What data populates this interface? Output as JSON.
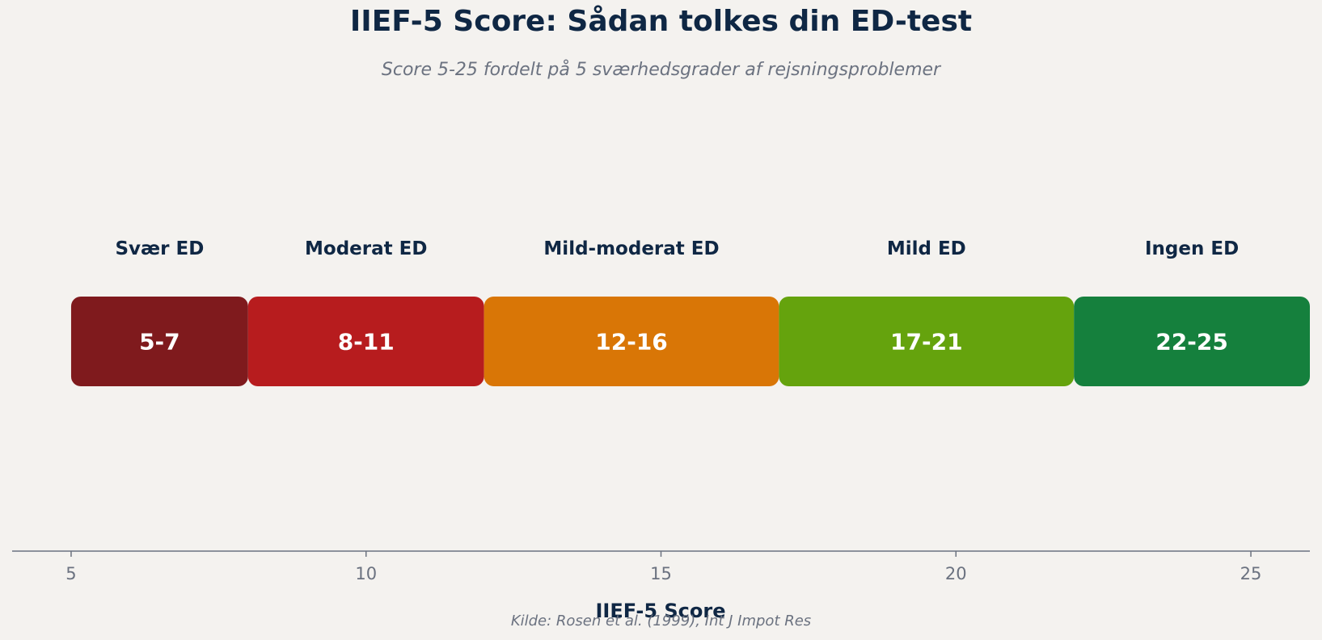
{
  "title": "IIEF-5 Score: Sådan tolkes din ED-test",
  "subtitle": "Score 5-25 fordelt på 5 sværhedsgrader af rejsningsproblemer",
  "source": "Kilde: Rosen et al. (1999), Int J Impot Res",
  "chart_data": {
    "type": "bar",
    "orientation": "horizontal-range",
    "xlabel": "IIEF-5 Score",
    "xlim": [
      4,
      26
    ],
    "xticks": [
      5,
      10,
      15,
      20,
      25
    ],
    "grid": false,
    "legend": "none",
    "segments": [
      {
        "category": "Svær ED",
        "range_label": "5-7",
        "start": 5,
        "end": 8,
        "color": "#7f1a1d"
      },
      {
        "category": "Moderat ED",
        "range_label": "8-11",
        "start": 8,
        "end": 12,
        "color": "#b71c1e"
      },
      {
        "category": "Mild-moderat ED",
        "range_label": "12-16",
        "start": 12,
        "end": 17,
        "color": "#d97606"
      },
      {
        "category": "Mild ED",
        "range_label": "17-21",
        "start": 17,
        "end": 22,
        "color": "#65a30d"
      },
      {
        "category": "Ingen ED",
        "range_label": "22-25",
        "start": 22,
        "end": 26,
        "color": "#15803d"
      }
    ]
  },
  "colors": {
    "background": "#f4f2ef",
    "title": "#0f2744",
    "muted": "#6b7280",
    "axis": "#6b7280",
    "bar_text": "#ffffff"
  }
}
